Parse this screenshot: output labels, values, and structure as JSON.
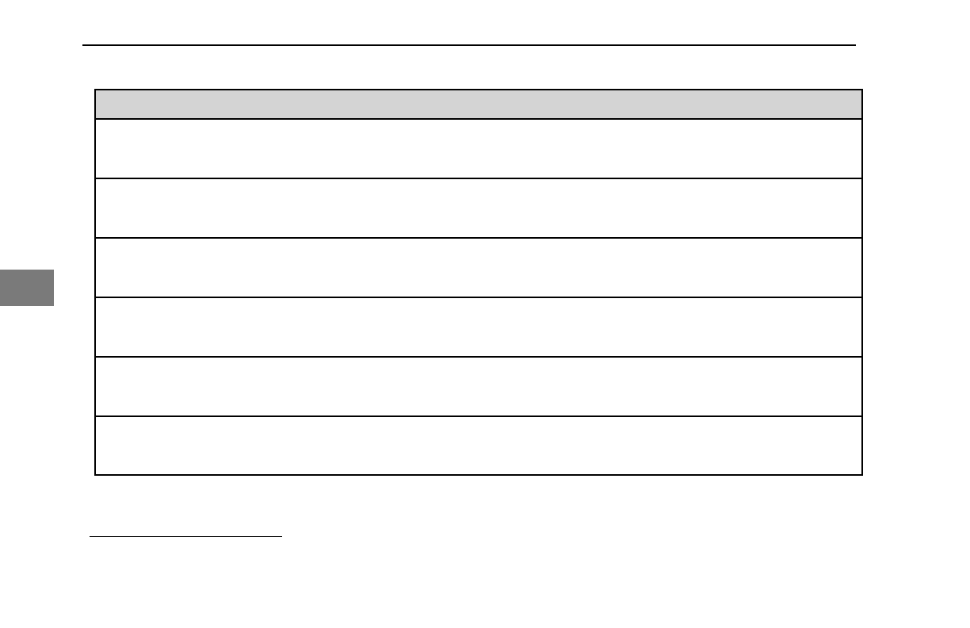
{
  "page": {
    "colors": {
      "header_fill": "#d4d4d4",
      "side_tab": "#7a7a7a",
      "rules": "#000000"
    },
    "table": {
      "header": "",
      "row_count": 6
    }
  }
}
